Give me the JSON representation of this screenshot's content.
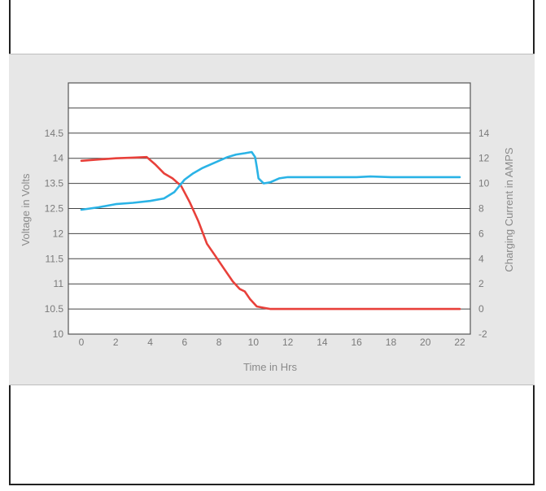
{
  "chart_data": {
    "type": "line",
    "xlabel": "Time in Hrs",
    "ylabel_left": "Voltage in Volts",
    "ylabel_right": "Charging Current in AMPS",
    "x_ticks": [
      0,
      2,
      4,
      6,
      8,
      10,
      12,
      14,
      16,
      18,
      20,
      22
    ],
    "y_left_ticks": [
      "10",
      "10.5",
      "11",
      "11.5",
      "12",
      "12.5",
      "13.5",
      "14",
      "14.5"
    ],
    "y_right_ticks": [
      "-2",
      "0",
      "2",
      "4",
      "6",
      "8",
      "10",
      "12",
      "14"
    ],
    "xlim": [
      0,
      22
    ],
    "ylim_right": [
      -2,
      14
    ],
    "grid": "horizontal",
    "series": [
      {
        "color": "#e8403a",
        "axis": "right",
        "points": [
          [
            0,
            11.8
          ],
          [
            1,
            11.9
          ],
          [
            2,
            12.0
          ],
          [
            3,
            12.05
          ],
          [
            3.8,
            12.1
          ],
          [
            4.3,
            11.5
          ],
          [
            4.8,
            10.8
          ],
          [
            5.3,
            10.4
          ],
          [
            5.8,
            9.8
          ],
          [
            6.3,
            8.5
          ],
          [
            6.8,
            7.0
          ],
          [
            7.3,
            5.2
          ],
          [
            7.8,
            4.2
          ],
          [
            8.3,
            3.2
          ],
          [
            8.8,
            2.2
          ],
          [
            9.2,
            1.6
          ],
          [
            9.5,
            1.4
          ],
          [
            9.8,
            0.8
          ],
          [
            10.2,
            0.2
          ],
          [
            10.6,
            0.1
          ],
          [
            11,
            0.0
          ],
          [
            12,
            0.0
          ],
          [
            14,
            0.0
          ],
          [
            16,
            0.0
          ],
          [
            18,
            0.0
          ],
          [
            20,
            0.0
          ],
          [
            22,
            0.0
          ]
        ]
      },
      {
        "color": "#2ab3e6",
        "axis": "right",
        "points": [
          [
            0,
            7.9
          ],
          [
            1,
            8.1
          ],
          [
            2,
            8.35
          ],
          [
            3,
            8.45
          ],
          [
            4,
            8.6
          ],
          [
            4.8,
            8.8
          ],
          [
            5.4,
            9.3
          ],
          [
            6.0,
            10.3
          ],
          [
            6.5,
            10.8
          ],
          [
            7.0,
            11.2
          ],
          [
            7.5,
            11.5
          ],
          [
            8.0,
            11.8
          ],
          [
            8.5,
            12.1
          ],
          [
            9.0,
            12.3
          ],
          [
            9.5,
            12.4
          ],
          [
            9.9,
            12.5
          ],
          [
            10.1,
            12.1
          ],
          [
            10.2,
            11.3
          ],
          [
            10.3,
            10.4
          ],
          [
            10.6,
            10.0
          ],
          [
            11,
            10.1
          ],
          [
            11.5,
            10.4
          ],
          [
            12,
            10.5
          ],
          [
            14,
            10.5
          ],
          [
            16,
            10.5
          ],
          [
            16.8,
            10.55
          ],
          [
            18,
            10.5
          ],
          [
            20,
            10.5
          ],
          [
            22,
            10.5
          ]
        ]
      }
    ]
  }
}
